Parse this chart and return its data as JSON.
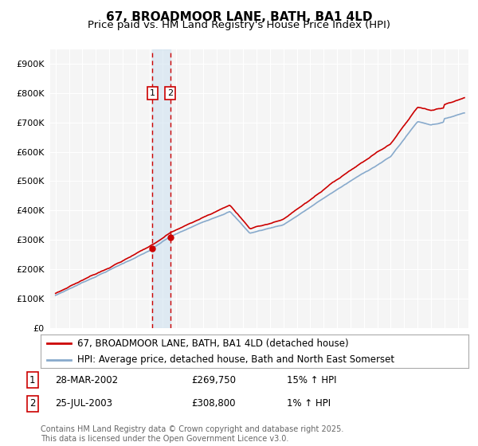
{
  "title": "67, BROADMOOR LANE, BATH, BA1 4LD",
  "subtitle": "Price paid vs. HM Land Registry's House Price Index (HPI)",
  "ylim": [
    0,
    950000
  ],
  "yticks": [
    0,
    100000,
    200000,
    300000,
    400000,
    500000,
    600000,
    700000,
    800000,
    900000
  ],
  "ytick_labels": [
    "£0",
    "£100K",
    "£200K",
    "£300K",
    "£400K",
    "£500K",
    "£600K",
    "£700K",
    "£800K",
    "£900K"
  ],
  "bg_color": "#f5f5f5",
  "grid_color": "#ffffff",
  "line1_color": "#cc0000",
  "line2_color": "#88aacc",
  "sale1_date": 2002.22,
  "sale1_price": 269750,
  "sale2_date": 2003.55,
  "sale2_price": 308800,
  "sale_box_color": "#cc0000",
  "shade_color": "#cce0f0",
  "shade_alpha": 0.55,
  "legend1_text": "67, BROADMOOR LANE, BATH, BA1 4LD (detached house)",
  "legend2_text": "HPI: Average price, detached house, Bath and North East Somerset",
  "table_entries": [
    {
      "num": "1",
      "date": "28-MAR-2002",
      "price": "£269,750",
      "hpi": "15% ↑ HPI"
    },
    {
      "num": "2",
      "date": "25-JUL-2003",
      "price": "£308,800",
      "hpi": "1% ↑ HPI"
    }
  ],
  "footer": "Contains HM Land Registry data © Crown copyright and database right 2025.\nThis data is licensed under the Open Government Licence v3.0.",
  "title_fontsize": 11,
  "subtitle_fontsize": 9.5,
  "tick_fontsize": 8,
  "legend_fontsize": 8.5,
  "table_fontsize": 8.5,
  "footer_fontsize": 7
}
